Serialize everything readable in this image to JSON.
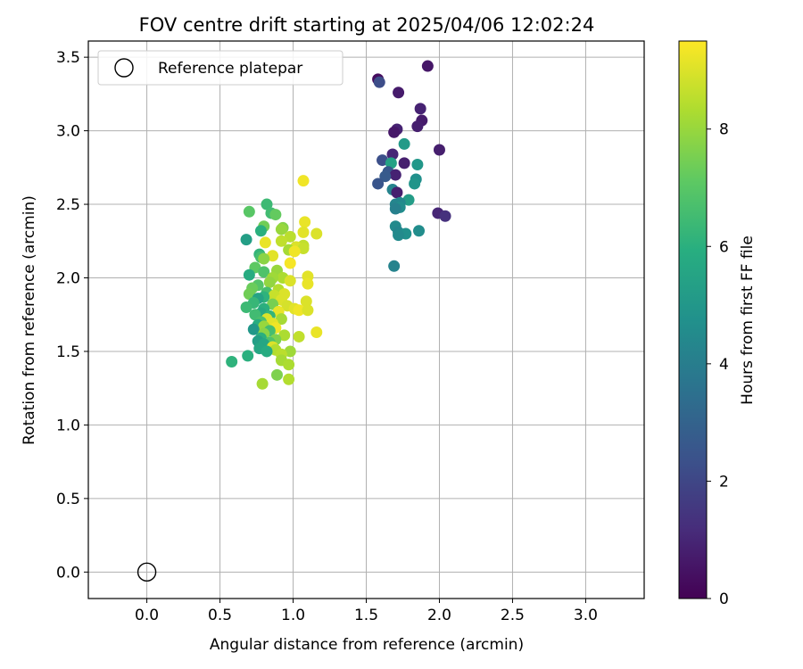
{
  "chart_data": {
    "type": "scatter",
    "title": "FOV centre drift starting at 2025/04/06 12:02:24",
    "xlabel": "Angular distance from reference (arcmin)",
    "ylabel": "Rotation from reference (arcmin)",
    "xlim": [
      -0.4,
      3.4
    ],
    "ylim": [
      -0.18,
      3.61
    ],
    "xticks": [
      0.0,
      0.5,
      1.0,
      1.5,
      2.0,
      2.5,
      3.0
    ],
    "xtick_labels": [
      "0.0",
      "0.5",
      "1.0",
      "1.5",
      "2.0",
      "2.5",
      "3.0"
    ],
    "yticks": [
      0.0,
      0.5,
      1.0,
      1.5,
      2.0,
      2.5,
      3.0,
      3.5
    ],
    "ytick_labels": [
      "0.0",
      "0.5",
      "1.0",
      "1.5",
      "2.0",
      "2.5",
      "3.0",
      "3.5"
    ],
    "grid": true,
    "legend": {
      "position": "top-left",
      "entries": [
        "Reference platepar"
      ]
    },
    "colorbar": {
      "label": "Hours from first FF file",
      "range": [
        0,
        9.5
      ],
      "ticks": [
        0,
        2,
        4,
        6,
        8
      ],
      "tick_labels": [
        "0",
        "2",
        "4",
        "6",
        "8"
      ],
      "colormap": "viridis"
    },
    "reference_point": {
      "name": "Reference platepar",
      "x": 0.0,
      "y": 0.0
    },
    "series": [
      {
        "points": [
          {
            "x": 1.58,
            "y": 3.35,
            "h": 0.3
          },
          {
            "x": 1.92,
            "y": 3.44,
            "h": 0.6
          },
          {
            "x": 1.72,
            "y": 3.26,
            "h": 0.7
          },
          {
            "x": 1.59,
            "y": 3.33,
            "h": 2.2
          },
          {
            "x": 1.87,
            "y": 3.15,
            "h": 0.9
          },
          {
            "x": 1.88,
            "y": 3.07,
            "h": 0.7
          },
          {
            "x": 1.85,
            "y": 3.03,
            "h": 0.8
          },
          {
            "x": 1.71,
            "y": 3.01,
            "h": 0.9
          },
          {
            "x": 1.69,
            "y": 2.99,
            "h": 0.6
          },
          {
            "x": 1.76,
            "y": 2.91,
            "h": 5.1
          },
          {
            "x": 2.0,
            "y": 2.87,
            "h": 0.8
          },
          {
            "x": 1.68,
            "y": 2.84,
            "h": 1.0
          },
          {
            "x": 1.61,
            "y": 2.8,
            "h": 2.3
          },
          {
            "x": 1.76,
            "y": 2.78,
            "h": 0.8
          },
          {
            "x": 1.67,
            "y": 2.78,
            "h": 5.4
          },
          {
            "x": 1.85,
            "y": 2.77,
            "h": 5.0
          },
          {
            "x": 1.65,
            "y": 2.72,
            "h": 2.6
          },
          {
            "x": 1.7,
            "y": 2.7,
            "h": 0.9
          },
          {
            "x": 1.63,
            "y": 2.69,
            "h": 2.7
          },
          {
            "x": 1.84,
            "y": 2.67,
            "h": 4.7
          },
          {
            "x": 1.83,
            "y": 2.64,
            "h": 4.9
          },
          {
            "x": 1.58,
            "y": 2.64,
            "h": 2.5
          },
          {
            "x": 1.68,
            "y": 2.6,
            "h": 4.2
          },
          {
            "x": 1.71,
            "y": 2.58,
            "h": 0.8
          },
          {
            "x": 1.79,
            "y": 2.53,
            "h": 5.2
          },
          {
            "x": 1.73,
            "y": 2.51,
            "h": 4.4
          },
          {
            "x": 1.7,
            "y": 2.5,
            "h": 4.3
          },
          {
            "x": 1.73,
            "y": 2.48,
            "h": 4.6
          },
          {
            "x": 1.7,
            "y": 2.47,
            "h": 4.1
          },
          {
            "x": 1.99,
            "y": 2.44,
            "h": 1.0
          },
          {
            "x": 2.04,
            "y": 2.42,
            "h": 1.3
          },
          {
            "x": 1.7,
            "y": 2.35,
            "h": 4.5
          },
          {
            "x": 1.72,
            "y": 2.31,
            "h": 4.3
          },
          {
            "x": 1.86,
            "y": 2.32,
            "h": 4.6
          },
          {
            "x": 1.77,
            "y": 2.3,
            "h": 4.7
          },
          {
            "x": 1.72,
            "y": 2.29,
            "h": 4.5
          },
          {
            "x": 1.69,
            "y": 2.08,
            "h": 4.2
          },
          {
            "x": 1.07,
            "y": 2.66,
            "h": 9.3
          },
          {
            "x": 0.82,
            "y": 2.5,
            "h": 6.4
          },
          {
            "x": 0.7,
            "y": 2.45,
            "h": 7.0
          },
          {
            "x": 0.85,
            "y": 2.44,
            "h": 6.5
          },
          {
            "x": 0.88,
            "y": 2.43,
            "h": 7.2
          },
          {
            "x": 1.08,
            "y": 2.38,
            "h": 9.2
          },
          {
            "x": 0.8,
            "y": 2.35,
            "h": 7.4
          },
          {
            "x": 0.93,
            "y": 2.34,
            "h": 7.7
          },
          {
            "x": 0.92,
            "y": 2.33,
            "h": 8.0
          },
          {
            "x": 0.78,
            "y": 2.32,
            "h": 6.0
          },
          {
            "x": 1.07,
            "y": 2.31,
            "h": 9.1
          },
          {
            "x": 1.16,
            "y": 2.3,
            "h": 9.0
          },
          {
            "x": 0.98,
            "y": 2.28,
            "h": 8.5
          },
          {
            "x": 0.68,
            "y": 2.26,
            "h": 5.3
          },
          {
            "x": 0.92,
            "y": 2.25,
            "h": 8.6
          },
          {
            "x": 0.81,
            "y": 2.24,
            "h": 9.2
          },
          {
            "x": 1.07,
            "y": 2.22,
            "h": 8.6
          },
          {
            "x": 1.02,
            "y": 2.21,
            "h": 9.0
          },
          {
            "x": 1.07,
            "y": 2.2,
            "h": 8.7
          },
          {
            "x": 0.97,
            "y": 2.19,
            "h": 8.2
          },
          {
            "x": 1.01,
            "y": 2.18,
            "h": 9.3
          },
          {
            "x": 0.77,
            "y": 2.16,
            "h": 6.2
          },
          {
            "x": 0.86,
            "y": 2.15,
            "h": 9.1
          },
          {
            "x": 0.78,
            "y": 2.14,
            "h": 6.6
          },
          {
            "x": 0.8,
            "y": 2.13,
            "h": 7.8
          },
          {
            "x": 0.98,
            "y": 2.1,
            "h": 9.4
          },
          {
            "x": 0.74,
            "y": 2.07,
            "h": 7.1
          },
          {
            "x": 0.89,
            "y": 2.05,
            "h": 8.0
          },
          {
            "x": 0.8,
            "y": 2.04,
            "h": 6.8
          },
          {
            "x": 0.7,
            "y": 2.02,
            "h": 5.8
          },
          {
            "x": 1.1,
            "y": 2.01,
            "h": 9.1
          },
          {
            "x": 0.93,
            "y": 2.0,
            "h": 8.3
          },
          {
            "x": 0.86,
            "y": 2.0,
            "h": 8.1
          },
          {
            "x": 0.98,
            "y": 1.98,
            "h": 9.0
          },
          {
            "x": 0.84,
            "y": 1.97,
            "h": 7.9
          },
          {
            "x": 1.1,
            "y": 1.96,
            "h": 9.2
          },
          {
            "x": 0.76,
            "y": 1.95,
            "h": 6.9
          },
          {
            "x": 0.72,
            "y": 1.93,
            "h": 7.3
          },
          {
            "x": 0.9,
            "y": 1.92,
            "h": 8.4
          },
          {
            "x": 0.82,
            "y": 1.9,
            "h": 6.6
          },
          {
            "x": 0.7,
            "y": 1.89,
            "h": 7.4
          },
          {
            "x": 0.94,
            "y": 1.89,
            "h": 9.0
          },
          {
            "x": 0.87,
            "y": 1.88,
            "h": 8.7
          },
          {
            "x": 0.8,
            "y": 1.87,
            "h": 6.1
          },
          {
            "x": 0.76,
            "y": 1.86,
            "h": 5.5
          },
          {
            "x": 0.92,
            "y": 1.85,
            "h": 9.0
          },
          {
            "x": 1.09,
            "y": 1.84,
            "h": 9.0
          },
          {
            "x": 0.73,
            "y": 1.83,
            "h": 6.3
          },
          {
            "x": 0.86,
            "y": 1.82,
            "h": 7.5
          },
          {
            "x": 0.96,
            "y": 1.81,
            "h": 8.9
          },
          {
            "x": 0.68,
            "y": 1.8,
            "h": 6.4
          },
          {
            "x": 0.8,
            "y": 1.79,
            "h": 6.0
          },
          {
            "x": 1.01,
            "y": 1.79,
            "h": 9.1
          },
          {
            "x": 1.04,
            "y": 1.78,
            "h": 9.3
          },
          {
            "x": 1.1,
            "y": 1.78,
            "h": 9.0
          },
          {
            "x": 0.9,
            "y": 1.77,
            "h": 9.2
          },
          {
            "x": 0.78,
            "y": 1.76,
            "h": 5.7
          },
          {
            "x": 0.74,
            "y": 1.75,
            "h": 6.5
          },
          {
            "x": 0.84,
            "y": 1.74,
            "h": 6.2
          },
          {
            "x": 0.82,
            "y": 1.72,
            "h": 9.0
          },
          {
            "x": 0.92,
            "y": 1.72,
            "h": 8.2
          },
          {
            "x": 0.78,
            "y": 1.7,
            "h": 6.7
          },
          {
            "x": 0.86,
            "y": 1.69,
            "h": 9.1
          },
          {
            "x": 0.76,
            "y": 1.68,
            "h": 5.9
          },
          {
            "x": 0.8,
            "y": 1.67,
            "h": 8.0
          },
          {
            "x": 0.88,
            "y": 1.66,
            "h": 9.3
          },
          {
            "x": 0.73,
            "y": 1.65,
            "h": 5.0
          },
          {
            "x": 0.84,
            "y": 1.64,
            "h": 6.6
          },
          {
            "x": 1.16,
            "y": 1.63,
            "h": 9.2
          },
          {
            "x": 0.8,
            "y": 1.62,
            "h": 7.8
          },
          {
            "x": 0.94,
            "y": 1.61,
            "h": 8.3
          },
          {
            "x": 1.04,
            "y": 1.6,
            "h": 8.6
          },
          {
            "x": 0.78,
            "y": 1.59,
            "h": 6.0
          },
          {
            "x": 0.88,
            "y": 1.58,
            "h": 7.6
          },
          {
            "x": 0.76,
            "y": 1.57,
            "h": 5.3
          },
          {
            "x": 0.84,
            "y": 1.56,
            "h": 6.8
          },
          {
            "x": 0.8,
            "y": 1.55,
            "h": 5.6
          },
          {
            "x": 0.86,
            "y": 1.53,
            "h": 9.0
          },
          {
            "x": 0.77,
            "y": 1.52,
            "h": 5.6
          },
          {
            "x": 0.88,
            "y": 1.51,
            "h": 8.4
          },
          {
            "x": 0.82,
            "y": 1.5,
            "h": 5.8
          },
          {
            "x": 0.98,
            "y": 1.5,
            "h": 8.1
          },
          {
            "x": 0.92,
            "y": 1.48,
            "h": 8.5
          },
          {
            "x": 0.69,
            "y": 1.47,
            "h": 6.0
          },
          {
            "x": 0.58,
            "y": 1.43,
            "h": 6.1
          },
          {
            "x": 0.92,
            "y": 1.44,
            "h": 8.2
          },
          {
            "x": 0.97,
            "y": 1.41,
            "h": 8.3
          },
          {
            "x": 0.89,
            "y": 1.34,
            "h": 7.6
          },
          {
            "x": 0.97,
            "y": 1.31,
            "h": 8.4
          },
          {
            "x": 0.79,
            "y": 1.28,
            "h": 8.2
          }
        ]
      }
    ]
  }
}
